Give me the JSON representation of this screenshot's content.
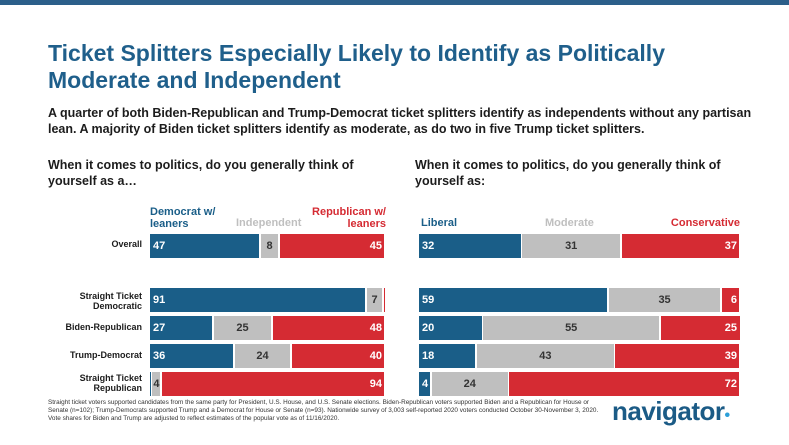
{
  "title": "Ticket Splitters Especially Likely to Identify as Politically Moderate and Independent",
  "subtitle": "A quarter of both Biden-Republican and Trump-Democrat ticket splitters identify as independents without any partisan lean. A majority of Biden ticket splitters identify as moderate, as do two in five Trump ticket splitters.",
  "footnote": "Straight ticket voters supported candidates from the same party for President, U.S. House, and U.S. Senate elections. Biden-Republican voters supported Biden and a Republican for House or Senate (n=102); Trump-Democrats supported Trump and a Democrat for House or Senate (n=93). Nationwide survey of 3,003 self-reported 2020 voters conducted October 30-November 3, 2020. Vote shares for Biden and Trump are adjusted to reflect estimates of the popular vote as of 11/16/2020.",
  "logo": "navigator",
  "colors": {
    "blue": "#1a5e88",
    "gray": "#bfbfbf",
    "red": "#d52b33"
  },
  "chart_data": [
    {
      "type": "bar",
      "stacked": true,
      "orientation": "horizontal",
      "title": "When it comes to politics, do you generally think of yourself as a…",
      "categories": [
        "Overall",
        "Straight Ticket Democratic",
        "Biden-Republican",
        "Trump-Democrat",
        "Straight Ticket Republican"
      ],
      "series": [
        {
          "name": "Democrat w/ leaners",
          "color": "#1a5e88",
          "values": [
            47,
            91,
            27,
            36,
            1
          ]
        },
        {
          "name": "Independent",
          "color": "#bfbfbf",
          "values": [
            8,
            7,
            25,
            24,
            4
          ]
        },
        {
          "name": "Republican w/ leaners",
          "color": "#d52b33",
          "values": [
            45,
            1,
            48,
            40,
            94
          ]
        }
      ],
      "labels": [
        [
          "47",
          "8",
          "45"
        ],
        [
          "91",
          "7",
          ""
        ],
        [
          "27",
          "25",
          "48"
        ],
        [
          "36",
          "24",
          "40"
        ],
        [
          "",
          "4",
          "94"
        ]
      ],
      "legend": "top"
    },
    {
      "type": "bar",
      "stacked": true,
      "orientation": "horizontal",
      "title": "When it comes to politics, do you generally think of yourself as:",
      "categories": [
        "Overall",
        "Straight Ticket Democratic",
        "Biden-Republican",
        "Trump-Democrat",
        "Straight Ticket Republican"
      ],
      "series": [
        {
          "name": "Liberal",
          "color": "#1a5e88",
          "values": [
            32,
            59,
            20,
            18,
            4
          ]
        },
        {
          "name": "Moderate",
          "color": "#bfbfbf",
          "values": [
            31,
            35,
            55,
            43,
            24
          ]
        },
        {
          "name": "Conservative",
          "color": "#d52b33",
          "values": [
            37,
            6,
            25,
            39,
            72
          ]
        }
      ],
      "labels": [
        [
          "32",
          "31",
          "37"
        ],
        [
          "59",
          "35",
          "6"
        ],
        [
          "20",
          "55",
          "25"
        ],
        [
          "18",
          "43",
          "39"
        ],
        [
          "4",
          "24",
          "72"
        ]
      ],
      "legend": "top"
    }
  ]
}
